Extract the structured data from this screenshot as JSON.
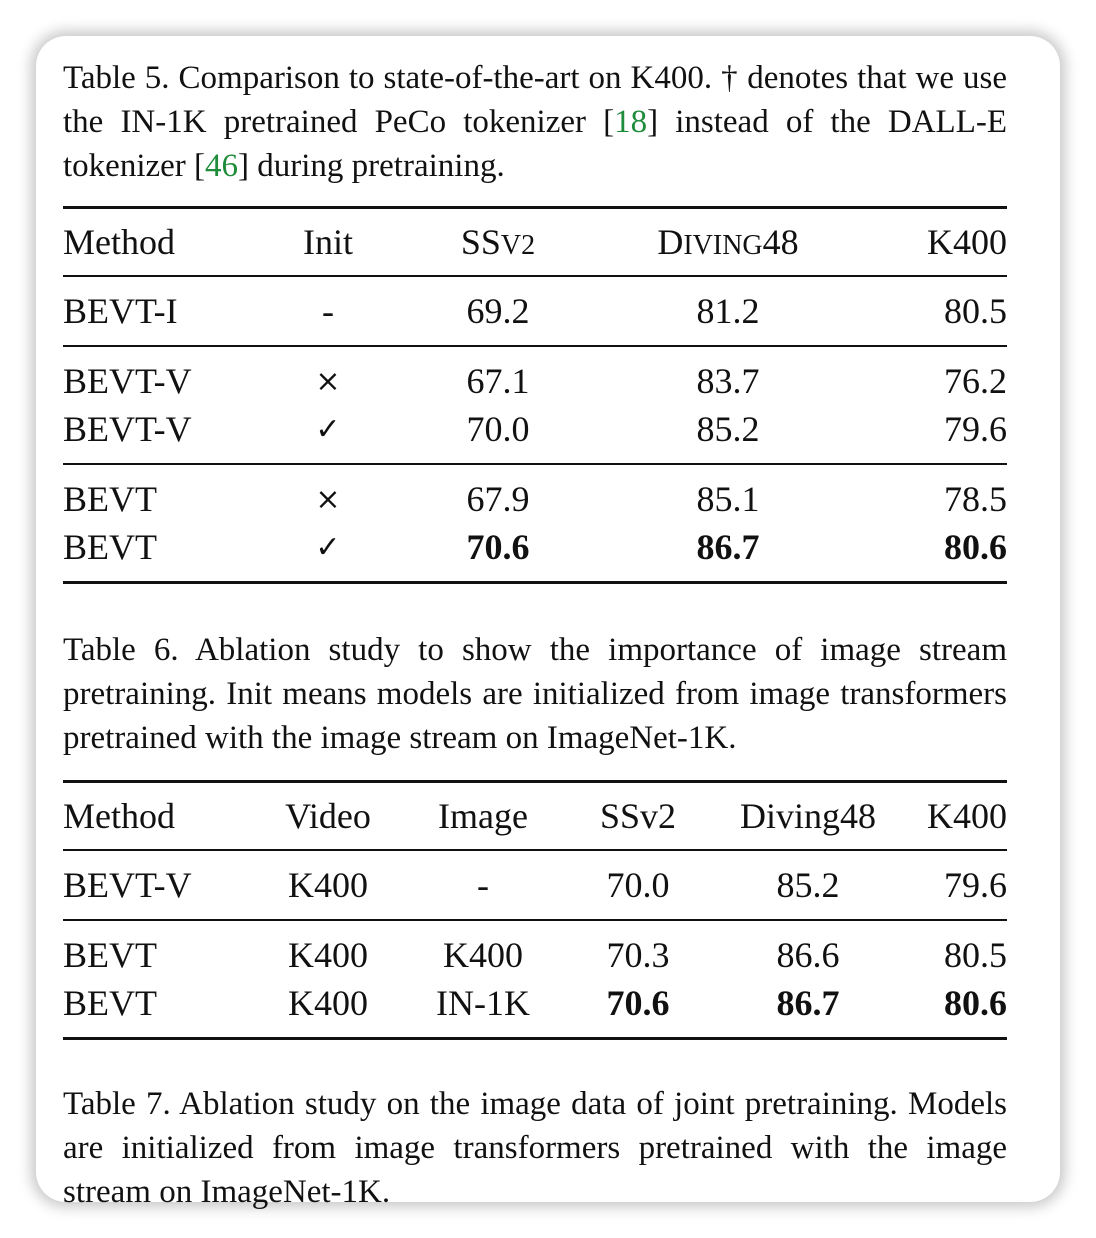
{
  "table5": {
    "caption": {
      "part1": "Table 5. Comparison to state-of-the-art on K400. † denotes that we use the IN-1K pretrained PeCo tokenizer [",
      "cite1": "18",
      "part2": "] instead of the DALL-E tokenizer [",
      "cite2": "46",
      "part3": "] during pretraining."
    },
    "headers": {
      "method": "Method",
      "init": "Init",
      "ssv2_a": "SS",
      "ssv2_b": "V2",
      "diving_a": "D",
      "diving_b": "IVING",
      "diving_c": "48",
      "k400": "K400"
    },
    "rows": [
      {
        "method": "BEVT-I",
        "init": "-",
        "ssv2": "69.2",
        "diving": "81.2",
        "k400": "80.5"
      },
      {
        "method": "BEVT-V",
        "init": "×",
        "ssv2": "67.1",
        "diving": "83.7",
        "k400": "76.2"
      },
      {
        "method": "BEVT-V",
        "init": "✓",
        "ssv2": "70.0",
        "diving": "85.2",
        "k400": "79.6"
      },
      {
        "method": "BEVT",
        "init": "×",
        "ssv2": "67.9",
        "diving": "85.1",
        "k400": "78.5"
      },
      {
        "method": "BEVT",
        "init": "✓",
        "ssv2": "70.6",
        "diving": "86.7",
        "k400": "80.6"
      }
    ]
  },
  "table6": {
    "caption": "Table 6. Ablation study to show the importance of image stream pretraining. Init means models are initialized from image transformers pretrained with the image stream on ImageNet-1K.",
    "headers": {
      "method": "Method",
      "video": "Video",
      "image": "Image",
      "ssv2": "SSv2",
      "diving": "Diving48",
      "k400": "K400"
    },
    "rows": [
      {
        "method": "BEVT-V",
        "video": "K400",
        "image": "-",
        "ssv2": "70.0",
        "diving": "85.2",
        "k400": "79.6"
      },
      {
        "method": "BEVT",
        "video": "K400",
        "image": "K400",
        "ssv2": "70.3",
        "diving": "86.6",
        "k400": "80.5"
      },
      {
        "method": "BEVT",
        "video": "K400",
        "image": "IN-1K",
        "ssv2": "70.6",
        "diving": "86.7",
        "k400": "80.6"
      }
    ]
  },
  "table7": {
    "caption": "Table 7. Ablation study on the image data of joint pretraining. Models are initialized from image transformers pretrained with the image stream on ImageNet-1K."
  }
}
